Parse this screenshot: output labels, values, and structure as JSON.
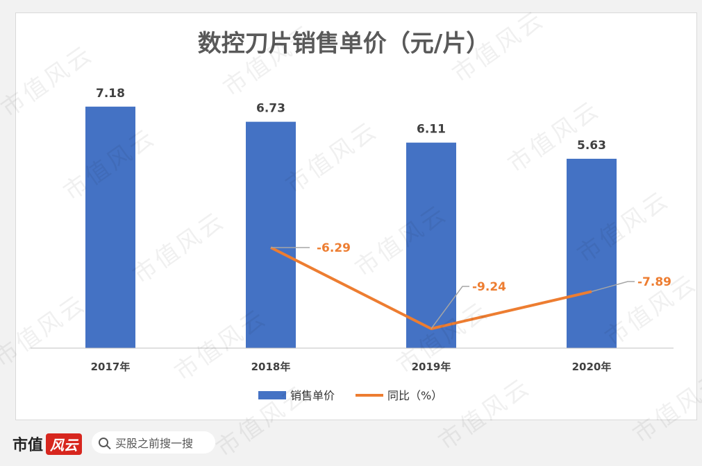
{
  "chart_data": {
    "type": "bar",
    "title": "数控刀片销售单价（元/片）",
    "categories": [
      "2017年",
      "2018年",
      "2019年",
      "2020年"
    ],
    "series": [
      {
        "name": "销售单价",
        "kind": "bar",
        "color": "#4472c4",
        "values": [
          7.18,
          6.73,
          6.11,
          5.63
        ],
        "labels": [
          "7.18",
          "6.73",
          "6.11",
          "5.63"
        ]
      },
      {
        "name": "同比（%）",
        "kind": "line",
        "color": "#ed7d31",
        "values": [
          null,
          -6.29,
          -9.24,
          -7.89
        ],
        "labels": [
          "",
          "-6.29",
          "-9.24",
          "-7.89"
        ]
      }
    ],
    "legend_position": "bottom",
    "grid": false
  },
  "footer": {
    "brand_text": "市值",
    "brand_logo": "风云",
    "search_placeholder": "买股之前搜一搜"
  },
  "watermark_text": "市值风云"
}
